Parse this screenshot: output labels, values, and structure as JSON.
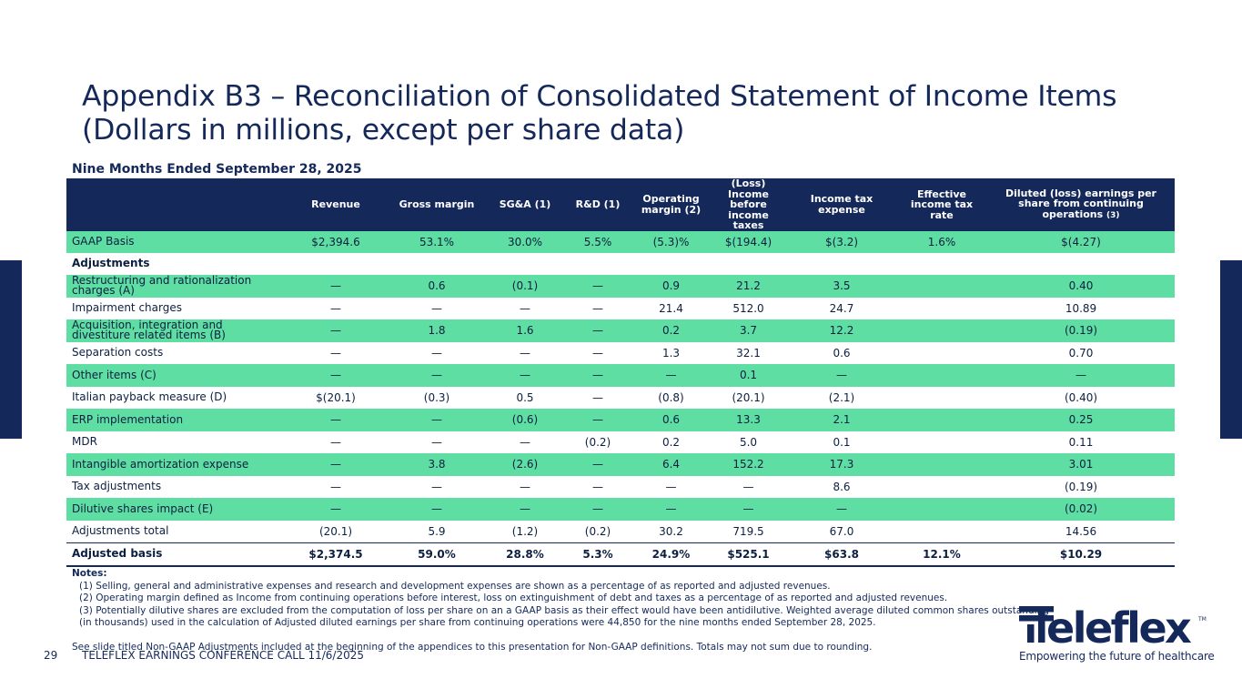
{
  "title": {
    "line1": "Appendix B3 – Reconciliation of Consolidated Statement of Income Items",
    "line2": "(Dollars in millions, except per share data)"
  },
  "section_title": "Nine Months Ended September 28, 2025",
  "table": {
    "headers": [
      "",
      "Revenue",
      "Gross margin",
      "SG&A (1)",
      "R&D (1)",
      "Operating margin (2)",
      "(Loss) Income before income taxes",
      "Income tax expense",
      "Effective income tax rate",
      "Diluted (loss) earnings per share from continuing operations"
    ],
    "last_header_note": "(3)",
    "rows": [
      {
        "label": "GAAP Basis",
        "values": [
          "$2,394.6",
          "53.1%",
          "30.0%",
          "5.5%",
          "(5.3)%",
          "$(194.4)",
          "$(3.2)",
          "1.6%",
          "$(4.27)"
        ]
      },
      {
        "label": "Adjustments",
        "values": [
          "",
          "",
          "",
          "",
          "",
          "",
          "",
          "",
          ""
        ]
      },
      {
        "label": "Restructuring and rationalization charges (A)",
        "values": [
          "—",
          "0.6",
          "(0.1)",
          "—",
          "0.9",
          "21.2",
          "3.5",
          "",
          "0.40"
        ]
      },
      {
        "label": "Impairment charges",
        "values": [
          "—",
          "—",
          "—",
          "—",
          "21.4",
          "512.0",
          "24.7",
          "",
          "10.89"
        ]
      },
      {
        "label": "Acquisition, integration and divestiture related items (B)",
        "values": [
          "—",
          "1.8",
          "1.6",
          "—",
          "0.2",
          "3.7",
          "12.2",
          "",
          "(0.19)"
        ]
      },
      {
        "label": "Separation costs",
        "values": [
          "—",
          "—",
          "—",
          "—",
          "1.3",
          "32.1",
          "0.6",
          "",
          "0.70"
        ]
      },
      {
        "label": "Other items (C)",
        "values": [
          "—",
          "—",
          "—",
          "—",
          "—",
          "0.1",
          "—",
          "",
          "—"
        ]
      },
      {
        "label": "Italian payback measure (D)",
        "values": [
          "$(20.1)",
          "(0.3)",
          "0.5",
          "—",
          "(0.8)",
          "(20.1)",
          "(2.1)",
          "",
          "(0.40)"
        ]
      },
      {
        "label": "ERP implementation",
        "values": [
          "—",
          "—",
          "(0.6)",
          "—",
          "0.6",
          "13.3",
          "2.1",
          "",
          "0.25"
        ]
      },
      {
        "label": "MDR",
        "values": [
          "—",
          "—",
          "—",
          "(0.2)",
          "0.2",
          "5.0",
          "0.1",
          "",
          "0.11"
        ]
      },
      {
        "label": "Intangible amortization expense",
        "values": [
          "—",
          "3.8",
          "(2.6)",
          "—",
          "6.4",
          "152.2",
          "17.3",
          "",
          "3.01"
        ]
      },
      {
        "label": "Tax adjustments",
        "values": [
          "—",
          "—",
          "—",
          "—",
          "—",
          "—",
          "8.6",
          "",
          "(0.19)"
        ]
      },
      {
        "label": "Dilutive shares impact (E)",
        "values": [
          "—",
          "—",
          "—",
          "—",
          "—",
          "—",
          "—",
          "",
          "(0.02)"
        ]
      },
      {
        "label": "Adjustments total",
        "values": [
          "(20.1)",
          "5.9",
          "(1.2)",
          "(0.2)",
          "30.2",
          "719.5",
          "67.0",
          "",
          "14.56"
        ]
      },
      {
        "label": "Adjusted basis",
        "values": [
          "$2,374.5",
          "59.0%",
          "28.8%",
          "5.3%",
          "24.9%",
          "$525.1",
          "$63.8",
          "12.1%",
          "$10.29"
        ]
      }
    ]
  },
  "notes": {
    "title": "Notes:",
    "lines": [
      "(1) Selling, general and administrative expenses and research and development expenses are shown as a percentage of as reported and adjusted revenues.",
      "(2) Operating margin defined as Income from continuing operations before interest, loss on extinguishment of debt and taxes as a percentage of as reported and adjusted revenues.",
      "(3)  Potentially dilutive shares are excluded from the computation of loss per share on an a GAAP basis as their effect would have been antidilutive. Weighted average diluted common shares outstanding",
      "(in thousands) used in the calculation of Adjusted diluted earnings per share from continuing operations were 44,850 for the nine months ended September 28, 2025."
    ],
    "disclaimer": "See slide titled Non-GAAP Adjustments included at the beginning of the appendices to this presentation for Non-GAAP definitions. Totals may not sum due to rounding."
  },
  "footer": {
    "page_number": "29",
    "conference": "TELEFLEX EARNINGS CONFERENCE CALL 11/6/2025"
  },
  "logo": {
    "name": "Teleflex",
    "trademark": "TM",
    "tagline": "Empowering the future of healthcare",
    "color": "#14285a"
  },
  "colors": {
    "navy": "#14285a",
    "green_row": "#5fdea3"
  }
}
